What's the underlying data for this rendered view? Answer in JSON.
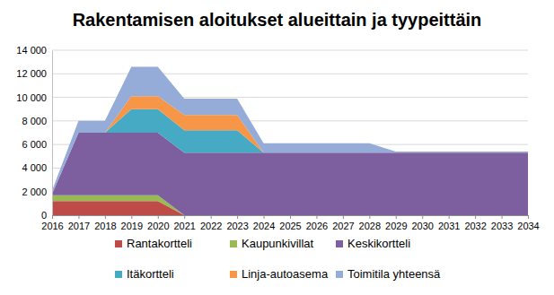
{
  "chart_data": {
    "type": "area",
    "title": "Rakentamisen aloitukset alueittain ja tyypeittäin",
    "categories": [
      "2016",
      "2017",
      "2018",
      "2019",
      "2020",
      "2021",
      "2022",
      "2023",
      "2024",
      "2025",
      "2026",
      "2027",
      "2028",
      "2029",
      "2030",
      "2031",
      "2032",
      "2033",
      "2034"
    ],
    "series": [
      {
        "name": "Rantakortteli",
        "color": "#be4b48",
        "values": [
          1200,
          1200,
          1200,
          1200,
          1200,
          0,
          0,
          0,
          0,
          0,
          0,
          0,
          0,
          0,
          0,
          0,
          0,
          0,
          0
        ]
      },
      {
        "name": "Kaupunkivillat",
        "color": "#98b954",
        "values": [
          500,
          500,
          500,
          500,
          500,
          0,
          0,
          0,
          0,
          0,
          0,
          0,
          0,
          0,
          0,
          0,
          0,
          0,
          0
        ]
      },
      {
        "name": "Keskikortteli",
        "color": "#7d5fa0",
        "values": [
          100,
          5300,
          5300,
          5300,
          5300,
          5300,
          5300,
          5300,
          5300,
          5300,
          5300,
          5300,
          5300,
          5300,
          5300,
          5300,
          5300,
          5300,
          5300
        ]
      },
      {
        "name": "Itäkortteli",
        "color": "#46aac5",
        "values": [
          0,
          0,
          0,
          2000,
          2000,
          1900,
          1900,
          1900,
          0,
          0,
          0,
          0,
          0,
          0,
          0,
          0,
          0,
          0,
          0
        ]
      },
      {
        "name": "Linja-autoasema",
        "color": "#f79646",
        "values": [
          0,
          0,
          0,
          1100,
          1100,
          1300,
          1300,
          1300,
          0,
          0,
          0,
          0,
          0,
          0,
          0,
          0,
          0,
          0,
          0
        ]
      },
      {
        "name": "Toimitila yhteensä",
        "color": "#95abd8",
        "values": [
          300,
          1000,
          1000,
          2500,
          2500,
          1400,
          1400,
          1400,
          800,
          800,
          800,
          800,
          800,
          100,
          100,
          100,
          100,
          100,
          100
        ]
      }
    ],
    "stacked": true,
    "ylim": [
      0,
      14000
    ],
    "yticks": [
      0,
      {
        "value": 2000,
        "label": "2 000"
      },
      {
        "value": 4000,
        "label": "4 000"
      },
      {
        "value": 6000,
        "label": "6 000"
      },
      {
        "value": 8000,
        "label": "8 000"
      },
      {
        "value": 10000,
        "label": "10 000"
      },
      {
        "value": 12000,
        "label": "12 000"
      },
      {
        "value": 14000,
        "label": "14 000"
      }
    ],
    "grid": true,
    "legend": "bottom"
  }
}
